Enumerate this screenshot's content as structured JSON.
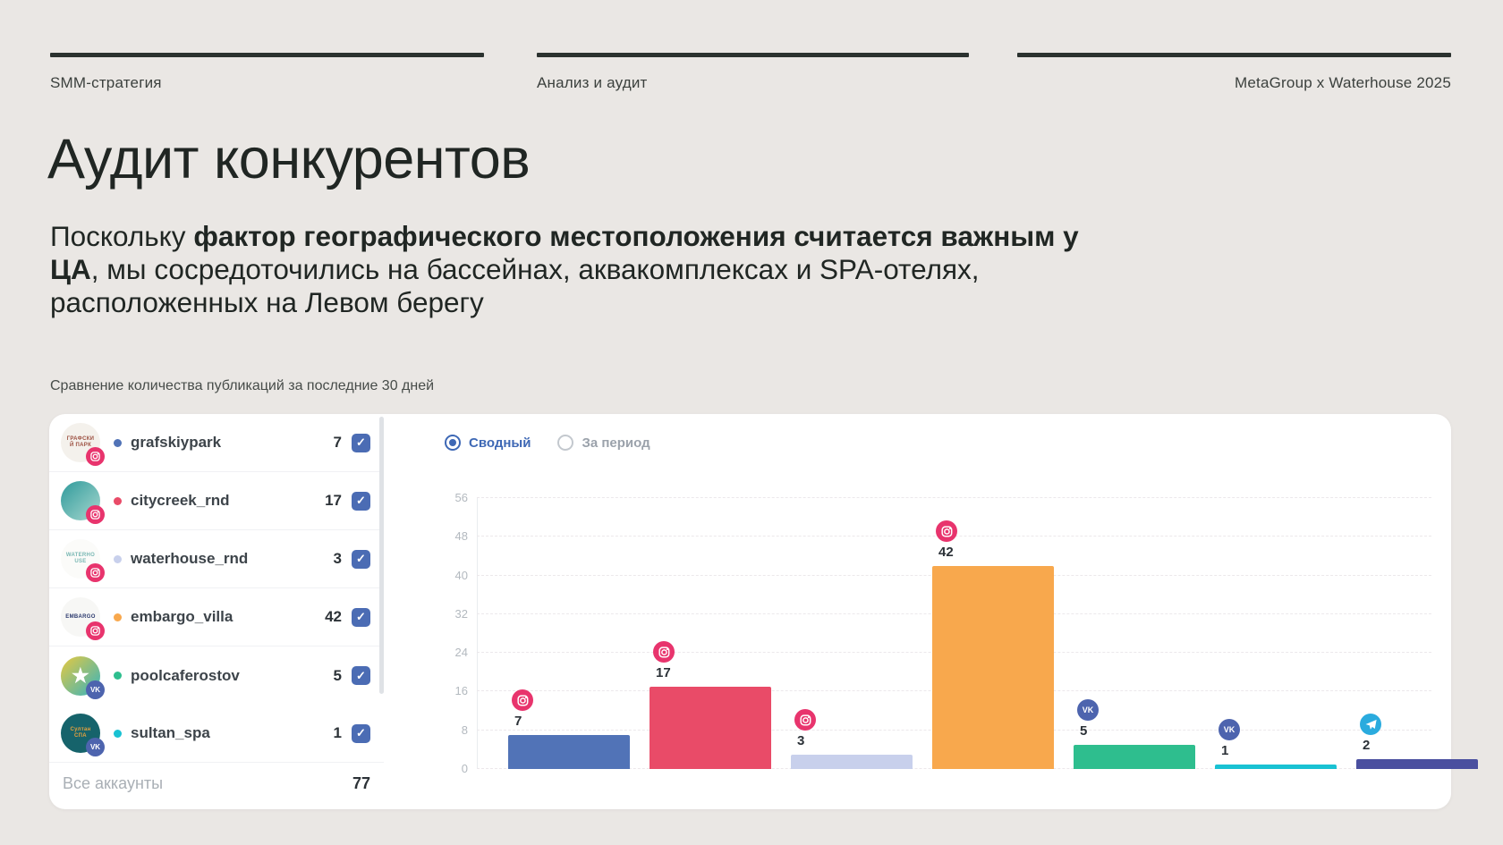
{
  "header": {
    "col1": "SMM-стратегия",
    "col2": "Анализ и аудит",
    "col3": "MetaGroup x Waterhouse 2025"
  },
  "title": "Аудит конкурентов",
  "subtitle": {
    "normal1": "Поскольку ",
    "bold": "фактор географического местоположения считается важным у ЦА",
    "normal2": ", мы сосредоточились на бассейнах, аквакомплексах и SPA-отелях, расположенных на Левом берегу"
  },
  "caption": "Сравнение количества публикаций за последние 30 дней",
  "widget": {
    "tabs": {
      "selected": "Сводный",
      "unselected": "За период"
    },
    "accounts": [
      {
        "name": "grafskiypark",
        "count": "7",
        "color": "#5173B7",
        "platform": "instagram",
        "checked": true,
        "avatar": {
          "label": "ГРАФСКИЙ ПАРК",
          "bg1": "#F4F1EC",
          "bg2": "#F4F1EC",
          "fg": "#9C4F40"
        }
      },
      {
        "name": "citycreek_rnd",
        "count": "17",
        "color": "#E94B68",
        "platform": "instagram",
        "checked": true,
        "avatar": {
          "label": "",
          "bg1": "#2F9A9B",
          "bg2": "#A8D8CF",
          "fg": "#FFFFFF"
        }
      },
      {
        "name": "waterhouse_rnd",
        "count": "3",
        "color": "#C8D0EC",
        "platform": "instagram",
        "checked": true,
        "avatar": {
          "label": "WATERHOUSE",
          "bg1": "#FBFBF9",
          "bg2": "#FBFBF9",
          "fg": "#7AB8B4"
        }
      },
      {
        "name": "embargo_villa",
        "count": "42",
        "color": "#F8A84D",
        "platform": "instagram",
        "checked": true,
        "avatar": {
          "label": "EMBARGO",
          "bg1": "#F7F7F5",
          "bg2": "#F7F7F5",
          "fg": "#2C3A6E"
        }
      },
      {
        "name": "poolcaferostov",
        "count": "5",
        "color": "#2EBE8E",
        "platform": "vk",
        "checked": true,
        "avatar": {
          "label": "★",
          "big": true,
          "bg1": "#E8C93F",
          "bg2": "#34B3C0",
          "fg": "#FFFFFF"
        }
      },
      {
        "name": "sultan_spa",
        "count": "1",
        "color": "#19C2D3",
        "platform": "vk",
        "checked": true,
        "avatar": {
          "label": "Султан СПА",
          "bg1": "#16636B",
          "bg2": "#16636B",
          "fg": "#E8A23D"
        }
      }
    ],
    "footer": {
      "label": "Все аккаунты",
      "total": "77"
    }
  },
  "platform_badges": {
    "instagram": {
      "color": "#E8346D",
      "icon": "instagram-icon"
    },
    "vk": {
      "color": "#4D64AE",
      "icon": "vk-icon",
      "label": "VK"
    },
    "telegram": {
      "color": "#2AABDE",
      "icon": "telegram-icon"
    }
  },
  "chart_data": {
    "type": "bar",
    "title": "Сравнение количества публикаций за последние 30 дней",
    "categories": [
      "grafskiypark",
      "citycreek_rnd",
      "waterhouse_rnd",
      "embargo_villa",
      "poolcaferostov",
      "sultan_spa",
      ""
    ],
    "values": [
      7,
      17,
      3,
      42,
      5,
      1,
      2
    ],
    "platforms": [
      "instagram",
      "instagram",
      "instagram",
      "instagram",
      "vk",
      "vk",
      "telegram"
    ],
    "colors": [
      "#5173B7",
      "#E94B68",
      "#C8D0EC",
      "#F8A84D",
      "#2EBE8E",
      "#19C2D3",
      "#4A4F9F"
    ],
    "xlabel": "",
    "ylabel": "",
    "ylim": [
      0,
      56
    ],
    "yticks": [
      0,
      8,
      16,
      24,
      32,
      40,
      48,
      56
    ],
    "grid": "horizontal-dashed",
    "legend": "none",
    "total": 77
  }
}
